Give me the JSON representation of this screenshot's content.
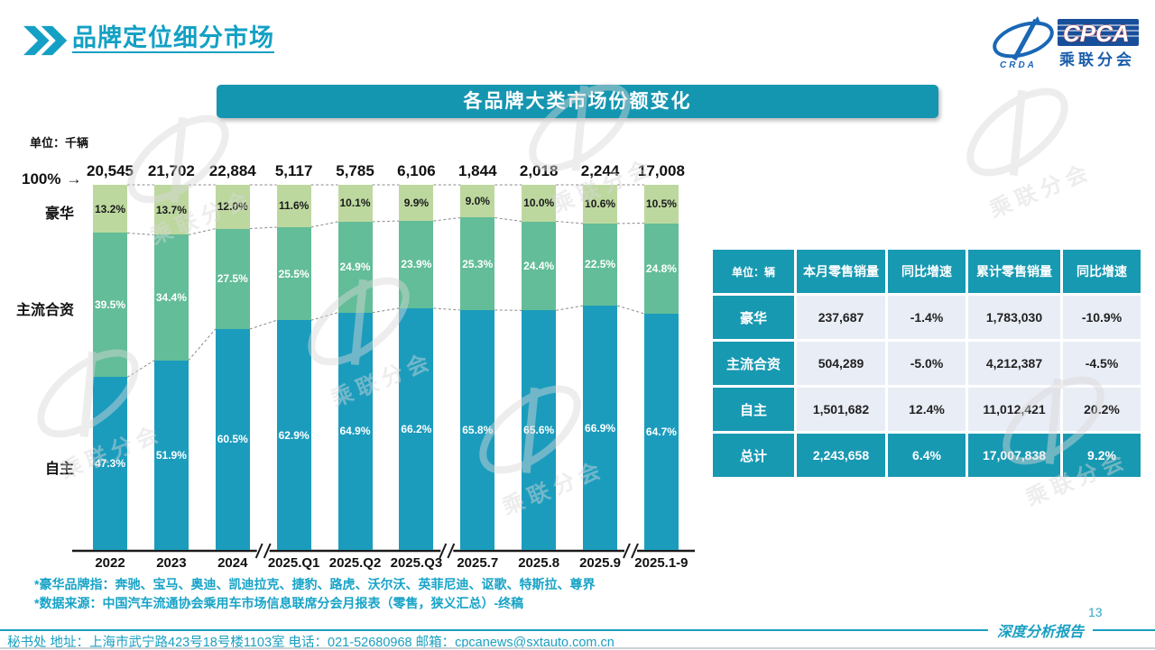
{
  "page": {
    "title": "品牌定位细分市场",
    "page_number": "13",
    "report_label": "深度分析报告"
  },
  "logo": {
    "cpca": "CPCA",
    "org_cn": "乘联分会",
    "crda": "CRDA"
  },
  "chart": {
    "banner_title": "各品牌大类市场份额变化",
    "unit_label": "单位：千辆",
    "top_axis_label": "100%",
    "arrow": "→",
    "category_labels": {
      "luxury": "豪华",
      "joint_venture": "主流合资",
      "domestic": "自主"
    }
  },
  "chart_data": {
    "type": "bar",
    "stacked": true,
    "percent_stack": true,
    "unit": "千辆",
    "title": "各品牌大类市场份额变化",
    "ylim": [
      0,
      100
    ],
    "categories": [
      "2022",
      "2023",
      "2024",
      "2025.Q1",
      "2025.Q2",
      "2025.Q3",
      "2025.7",
      "2025.8",
      "2025.9",
      "2025.1-9"
    ],
    "totals": [
      "20,545",
      "21,702",
      "22,884",
      "5,117",
      "5,785",
      "6,106",
      "1,844",
      "2,018",
      "2,244",
      "17,008"
    ],
    "series": [
      {
        "name": "豪华",
        "color": "#bdd89f",
        "label_color": "#1a1a1a",
        "values": [
          13.2,
          13.7,
          12.0,
          11.6,
          10.1,
          9.9,
          9.0,
          10.0,
          10.6,
          10.5
        ]
      },
      {
        "name": "主流合资",
        "color": "#63bd98",
        "label_color": "#ffffff",
        "values": [
          39.5,
          34.4,
          27.5,
          25.5,
          24.9,
          23.9,
          25.3,
          24.4,
          22.5,
          24.8
        ]
      },
      {
        "name": "自主",
        "color": "#1b9cbd",
        "label_color": "#ffffff",
        "values": [
          47.3,
          51.9,
          60.5,
          62.9,
          64.9,
          66.2,
          65.8,
          65.6,
          66.9,
          64.7
        ]
      }
    ],
    "axis_breaks_after_index": [
      2,
      5,
      8
    ],
    "legend_position": "left-of-bars",
    "grid": false
  },
  "table": {
    "unit_header": "单位：辆",
    "columns": [
      "本月零售销量",
      "同比增速",
      "累计零售销量",
      "同比增速"
    ],
    "rows": [
      {
        "label": "豪华",
        "values": [
          "237,687",
          "-1.4%",
          "1,783,030",
          "-10.9%"
        ],
        "highlight": false
      },
      {
        "label": "主流合资",
        "values": [
          "504,289",
          "-5.0%",
          "4,212,387",
          "-4.5%"
        ],
        "highlight": false
      },
      {
        "label": "自主",
        "values": [
          "1,501,682",
          "12.4%",
          "11,012,421",
          "20.2%"
        ],
        "highlight": false
      },
      {
        "label": "总计",
        "values": [
          "2,243,658",
          "6.4%",
          "17,007,838",
          "9.2%"
        ],
        "highlight": true
      }
    ]
  },
  "footnotes": [
    "*豪华品牌指：奔驰、宝马、奥迪、凯迪拉克、捷豹、路虎、沃尔沃、英菲尼迪、讴歌、特斯拉、尊界",
    "*数据来源：中国汽车流通协会乘用车市场信息联席分会月报表（零售，狭义汇总）-终稿"
  ],
  "footer": {
    "text": "秘书处  地址：上海市武宁路423号18号楼1103室  电话：021-52680968  邮箱：cpcanews@sxtauto.com.cn"
  },
  "colors": {
    "teal_bar": "#1b9cbd",
    "mid_green": "#63bd98",
    "light_green": "#bdd89f",
    "banner": "#1596b0",
    "title_accent": "#14a0c4",
    "table_header": "#1899b2",
    "cell_bg": "#e9edf6",
    "footer_teal": "#1a9fc0"
  }
}
